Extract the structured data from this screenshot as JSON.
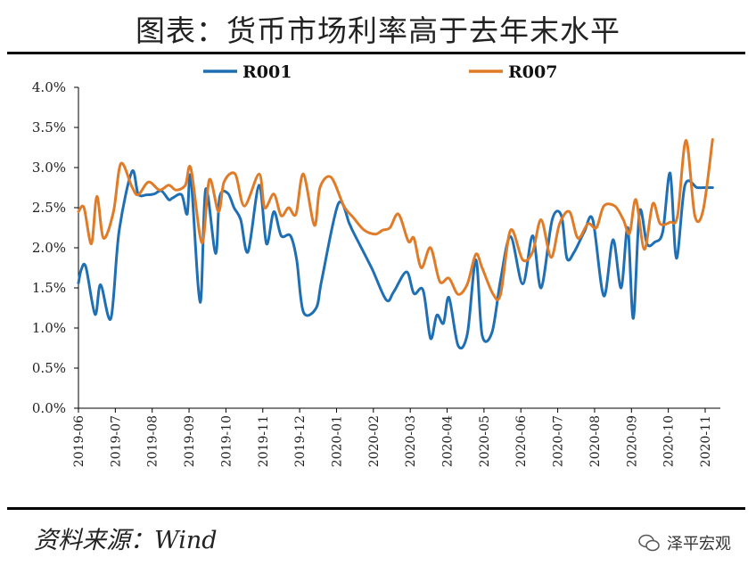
{
  "title": "图表：货币市场利率高于去年末水平",
  "source": "资料来源：Wind",
  "watermark": "泽平宏观",
  "chart_data": {
    "type": "line",
    "title": "图表：货币市场利率高于去年末水平",
    "ylim": [
      0,
      4.0
    ],
    "yticks": [
      "0.0%",
      "0.5%",
      "1.0%",
      "1.5%",
      "2.0%",
      "2.5%",
      "3.0%",
      "3.5%",
      "4.0%"
    ],
    "ytick_values": [
      0,
      0.5,
      1.0,
      1.5,
      2.0,
      2.5,
      3.0,
      3.5,
      4.0
    ],
    "x_months": [
      "2019-06",
      "2019-07",
      "2019-08",
      "2019-09",
      "2019-10",
      "2019-11",
      "2019-12",
      "2020-01",
      "2020-02",
      "2020-03",
      "2020-04",
      "2020-05",
      "2020-06",
      "2020-07",
      "2020-08",
      "2020-09",
      "2020-10",
      "2020-11"
    ],
    "xlim_months": [
      0,
      17.3
    ],
    "legend_position": "top-center",
    "series": [
      {
        "name": "R001",
        "color": "#1f6fb4",
        "x": [
          0,
          0.07,
          0.2,
          0.45,
          0.6,
          0.88,
          1.1,
          1.45,
          1.62,
          1.85,
          2.05,
          2.25,
          2.45,
          2.55,
          2.8,
          2.95,
          3.05,
          3.3,
          3.45,
          3.72,
          3.83,
          4.05,
          4.22,
          4.4,
          4.6,
          4.9,
          5.1,
          5.3,
          5.5,
          5.75,
          5.92,
          6.1,
          6.45,
          6.6,
          7.05,
          7.35,
          7.45,
          7.95,
          8.35,
          8.55,
          8.9,
          9.1,
          9.35,
          9.55,
          9.72,
          9.9,
          10.05,
          10.3,
          10.55,
          10.78,
          10.95,
          11.22,
          11.45,
          11.72,
          12.05,
          12.32,
          12.55,
          12.85,
          13.1,
          13.25,
          13.45,
          13.72,
          13.95,
          14.25,
          14.5,
          14.72,
          14.9,
          15.05,
          15.22,
          15.42,
          15.63,
          15.85,
          16.05,
          16.22,
          16.45,
          16.78,
          16.95,
          17.2
        ],
        "values": [
          1.56,
          1.72,
          1.76,
          1.17,
          1.54,
          1.12,
          2.2,
          2.95,
          2.67,
          2.66,
          2.67,
          2.71,
          2.6,
          2.62,
          2.66,
          2.42,
          2.88,
          1.32,
          2.73,
          1.93,
          2.63,
          2.68,
          2.5,
          2.35,
          1.95,
          2.78,
          2.05,
          2.45,
          2.15,
          2.15,
          1.85,
          1.2,
          1.25,
          1.6,
          2.55,
          2.3,
          2.2,
          1.75,
          1.35,
          1.45,
          1.7,
          1.43,
          1.47,
          0.87,
          1.16,
          1.06,
          1.38,
          0.78,
          0.93,
          1.85,
          0.91,
          0.95,
          1.6,
          2.14,
          1.55,
          2.15,
          1.5,
          2.35,
          2.4,
          1.87,
          1.95,
          2.2,
          2.35,
          1.4,
          2.1,
          1.5,
          2.25,
          1.12,
          2.45,
          2.05,
          2.07,
          2.2,
          2.93,
          1.87,
          2.78,
          2.75,
          2.75,
          2.75
        ]
      },
      {
        "name": "R007",
        "color": "#e07b28",
        "x": [
          0,
          0.15,
          0.35,
          0.5,
          0.68,
          0.95,
          1.15,
          1.45,
          1.62,
          1.9,
          2.2,
          2.45,
          2.65,
          2.9,
          3.05,
          3.35,
          3.55,
          3.8,
          3.95,
          4.25,
          4.5,
          4.9,
          5.05,
          5.3,
          5.5,
          5.7,
          5.9,
          6.1,
          6.4,
          6.55,
          6.85,
          7.2,
          7.45,
          7.75,
          8.05,
          8.25,
          8.45,
          8.68,
          8.95,
          9.1,
          9.3,
          9.55,
          9.8,
          10.05,
          10.3,
          10.55,
          10.78,
          10.95,
          11.25,
          11.45,
          11.72,
          12.05,
          12.32,
          12.55,
          12.82,
          13.05,
          13.32,
          13.55,
          13.82,
          14.05,
          14.25,
          14.55,
          14.78,
          14.95,
          15.12,
          15.35,
          15.58,
          15.78,
          16.05,
          16.25,
          16.48,
          16.72,
          16.95,
          17.2
        ],
        "values": [
          2.45,
          2.5,
          2.05,
          2.64,
          2.12,
          2.45,
          3.05,
          2.76,
          2.66,
          2.82,
          2.72,
          2.78,
          2.72,
          2.78,
          2.99,
          2.06,
          2.85,
          2.45,
          2.82,
          2.92,
          2.52,
          2.92,
          2.5,
          2.67,
          2.4,
          2.5,
          2.42,
          2.92,
          2.28,
          2.75,
          2.88,
          2.52,
          2.38,
          2.22,
          2.17,
          2.22,
          2.25,
          2.42,
          2.08,
          2.12,
          1.75,
          2.0,
          1.58,
          1.62,
          1.42,
          1.55,
          1.92,
          1.75,
          1.42,
          1.42,
          2.22,
          1.85,
          1.95,
          2.35,
          1.88,
          2.3,
          2.45,
          2.12,
          2.3,
          2.25,
          2.52,
          2.52,
          2.35,
          2.18,
          2.6,
          1.98,
          2.55,
          2.3,
          2.32,
          2.4,
          3.34,
          2.4,
          2.48,
          3.35
        ]
      }
    ]
  }
}
